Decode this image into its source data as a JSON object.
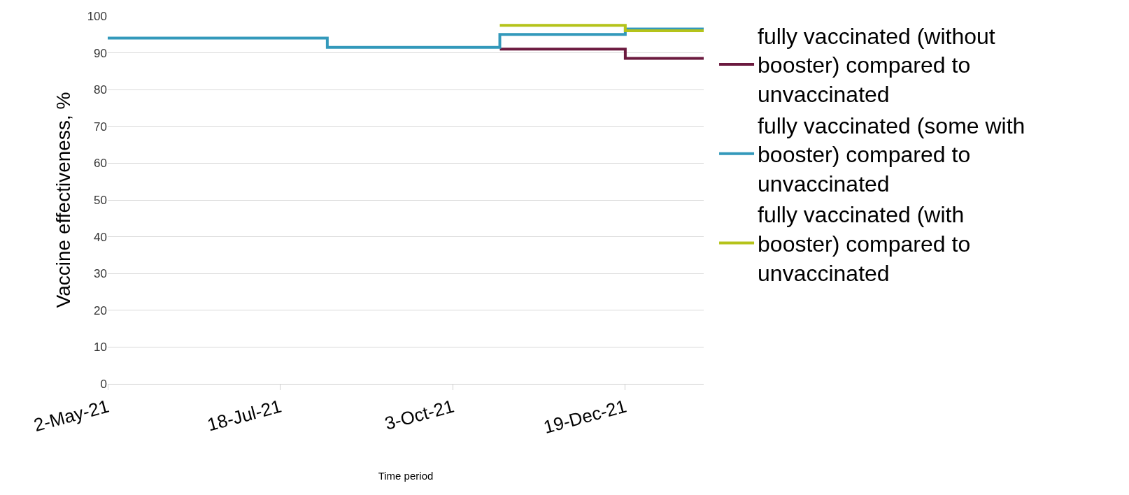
{
  "chart_data": {
    "type": "step",
    "xlabel": "Time period",
    "ylabel": "Vaccine effectiveness, %",
    "xlim": [
      "2021-05-02",
      "2022-01-23"
    ],
    "xticks": [
      {
        "value": "2021-05-02",
        "label": "2-May-21"
      },
      {
        "value": "2021-07-18",
        "label": "18-Jul-21"
      },
      {
        "value": "2021-10-03",
        "label": "3-Oct-21"
      },
      {
        "value": "2021-12-19",
        "label": "19-Dec-21"
      }
    ],
    "ylim": [
      0,
      100
    ],
    "yticks": [
      0,
      10,
      20,
      30,
      40,
      50,
      60,
      70,
      80,
      90,
      100
    ],
    "grid": "y",
    "legend": "right",
    "line_style": "solid",
    "marker": "none",
    "series": [
      {
        "name": "fully vaccinated (without booster) compared to unvaccinated",
        "color": "#6b1a3f",
        "x": [
          "2021-10-24",
          "2021-12-19",
          "2022-01-23"
        ],
        "values": [
          91,
          88.5,
          88.5
        ]
      },
      {
        "name": "fully vaccinated (some with booster) compared to unvaccinated",
        "color": "#3399bb",
        "x": [
          "2021-05-02",
          "2021-08-08",
          "2021-10-24",
          "2021-12-19",
          "2022-01-23"
        ],
        "values": [
          94,
          91.5,
          95,
          96.5,
          96.5
        ]
      },
      {
        "name": "fully vaccinated (with booster) compared to unvaccinated",
        "color": "#b5c31a",
        "x": [
          "2021-10-24",
          "2021-12-19",
          "2022-01-23"
        ],
        "values": [
          97.5,
          96,
          96
        ]
      }
    ]
  }
}
